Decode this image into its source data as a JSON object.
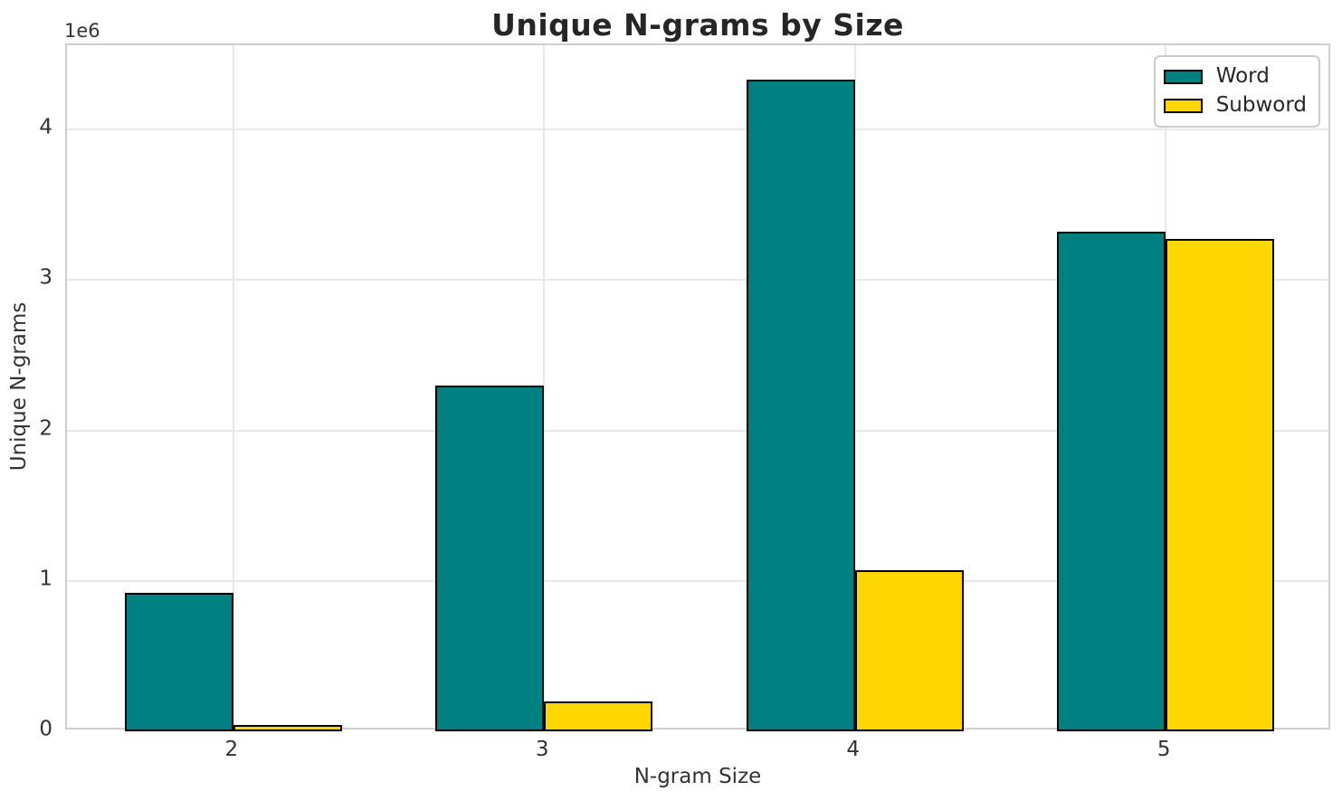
{
  "chart_data": {
    "type": "bar",
    "title": "Unique N-grams by Size",
    "xlabel": "N-gram Size",
    "ylabel": "Unique N-grams",
    "y_offset_label": "1e6",
    "categories": [
      2,
      3,
      4,
      5
    ],
    "series": [
      {
        "name": "Word",
        "color": "#008080",
        "values": [
          920000,
          2300000,
          4330000,
          3320000
        ]
      },
      {
        "name": "Subword",
        "color": "#FFD700",
        "values": [
          40000,
          200000,
          1070000,
          3270000
        ]
      }
    ],
    "bar_width": 0.35,
    "edge_color": "#000000",
    "xlim": [
      1.465,
      5.535
    ],
    "ylim": [
      0,
      4560000
    ],
    "xticks": [
      {
        "value": 2,
        "label": "2"
      },
      {
        "value": 3,
        "label": "3"
      },
      {
        "value": 4,
        "label": "4"
      },
      {
        "value": 5,
        "label": "5"
      }
    ],
    "yticks": [
      {
        "value": 0,
        "label": "0"
      },
      {
        "value": 1000000,
        "label": "1"
      },
      {
        "value": 2000000,
        "label": "2"
      },
      {
        "value": 3000000,
        "label": "3"
      },
      {
        "value": 4000000,
        "label": "4"
      }
    ],
    "grid": true,
    "legend_position": "upper right"
  }
}
